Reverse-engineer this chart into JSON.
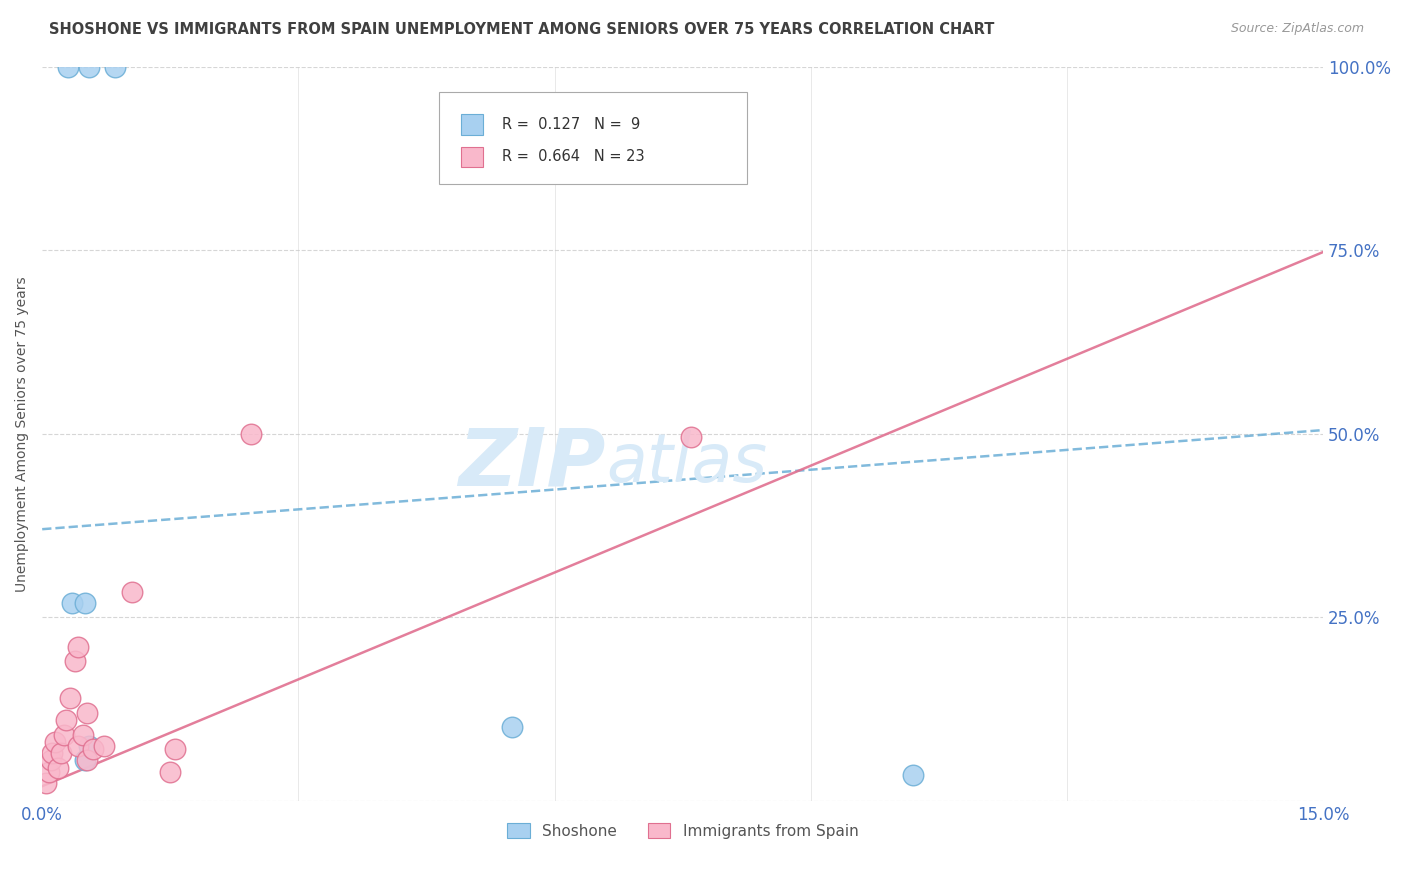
{
  "title": "SHOSHONE VS IMMIGRANTS FROM SPAIN UNEMPLOYMENT AMONG SENIORS OVER 75 YEARS CORRELATION CHART",
  "source": "Source: ZipAtlas.com",
  "xlim": [
    0.0,
    15.0
  ],
  "ylim": [
    0.0,
    100.0
  ],
  "ylabel": "Unemployment Among Seniors over 75 years",
  "shoshone_color": "#A8D0F0",
  "shoshone_line_color": "#6BAED6",
  "spain_color": "#F9B8CB",
  "spain_line_color": "#E07090",
  "shoshone_R": 0.127,
  "shoshone_N": 9,
  "spain_R": 0.664,
  "spain_N": 23,
  "shoshone_points": [
    [
      0.3,
      100.0
    ],
    [
      0.55,
      100.0
    ],
    [
      0.85,
      100.0
    ],
    [
      0.35,
      27.0
    ],
    [
      0.5,
      27.0
    ],
    [
      0.5,
      5.5
    ],
    [
      0.55,
      7.5
    ],
    [
      5.5,
      10.0
    ],
    [
      10.2,
      3.5
    ]
  ],
  "spain_points": [
    [
      0.05,
      2.5
    ],
    [
      0.08,
      4.0
    ],
    [
      0.1,
      5.5
    ],
    [
      0.12,
      6.5
    ],
    [
      0.15,
      8.0
    ],
    [
      0.18,
      4.5
    ],
    [
      0.22,
      6.5
    ],
    [
      0.25,
      9.0
    ],
    [
      0.28,
      11.0
    ],
    [
      0.32,
      14.0
    ],
    [
      0.38,
      19.0
    ],
    [
      0.42,
      21.0
    ],
    [
      0.42,
      7.5
    ],
    [
      0.48,
      9.0
    ],
    [
      0.52,
      12.0
    ],
    [
      0.52,
      5.5
    ],
    [
      0.6,
      7.0
    ],
    [
      0.72,
      7.5
    ],
    [
      1.05,
      28.5
    ],
    [
      1.5,
      4.0
    ],
    [
      1.55,
      7.0
    ],
    [
      7.6,
      49.5
    ],
    [
      2.45,
      50.0
    ]
  ],
  "shoshone_trend_intercept": 37.0,
  "shoshone_trend_slope": 0.9,
  "spain_trend_intercept": 2.0,
  "spain_trend_slope": 4.85,
  "background_color": "#FFFFFF",
  "grid_color": "#CCCCCC",
  "tick_label_color": "#4472C4",
  "title_color": "#404040",
  "watermark_color": "#D8EAF8",
  "yticks": [
    0,
    25,
    50,
    75,
    100
  ],
  "ytick_labels": [
    "",
    "25.0%",
    "50.0%",
    "75.0%",
    "100.0%"
  ],
  "xtick_labels": [
    "0.0%",
    "15.0%"
  ],
  "xtick_minor": [
    3.0,
    6.0,
    9.0,
    12.0
  ]
}
